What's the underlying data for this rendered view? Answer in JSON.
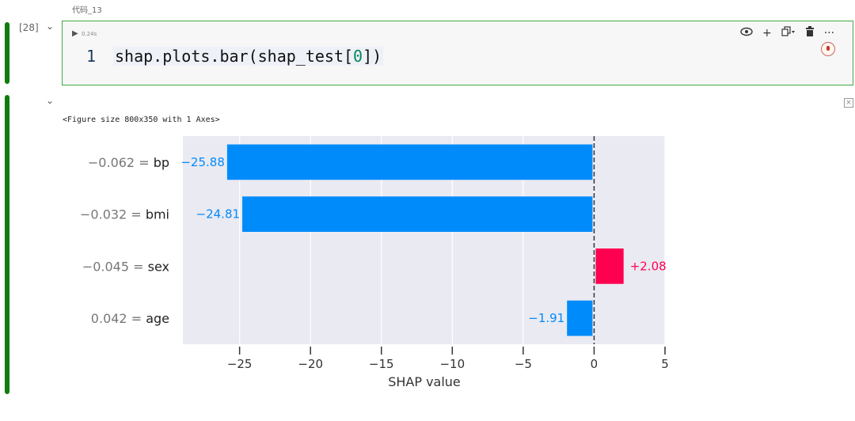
{
  "cell": {
    "title": "代码_13",
    "exec_count": "[28]",
    "exec_time": "0.24s",
    "line_number": "1",
    "code_text": "shap.plots.bar(shap_test[",
    "code_index": "0",
    "code_close": "])",
    "toolbar": {
      "preview_icon": "eye-icon",
      "add_icon": "plus-icon",
      "copy_icon": "copy-icon",
      "delete_icon": "trash-icon",
      "more_icon": "ellipsis-icon"
    }
  },
  "output": {
    "figure_caption": "<Figure size 800x350 with 1 Axes>"
  },
  "chart_data": {
    "type": "bar",
    "orientation": "horizontal",
    "categories": [
      "−0.062 = bp",
      "−0.032 = bmi",
      "−0.045 = sex",
      "0.042 = age"
    ],
    "category_values": [
      "−0.062",
      "−0.032",
      "−0.045",
      "0.042"
    ],
    "category_names": [
      "bp",
      "bmi",
      "sex",
      "age"
    ],
    "values": [
      -25.88,
      -24.81,
      2.08,
      -1.91
    ],
    "value_labels": [
      "−25.88",
      "−24.81",
      "+2.08",
      "−1.91"
    ],
    "xlabel": "SHAP value",
    "xlim": [
      -29,
      5
    ],
    "xticks": [
      -25,
      -20,
      -15,
      -10,
      -5,
      0,
      5
    ],
    "xtick_labels": [
      "−25",
      "−20",
      "−15",
      "−10",
      "−5",
      "0",
      "5"
    ],
    "colors": {
      "negative": "#008bfb",
      "positive": "#ff0051",
      "background": "#eaeaf2",
      "grid": "#ffffff"
    },
    "grid": true
  }
}
